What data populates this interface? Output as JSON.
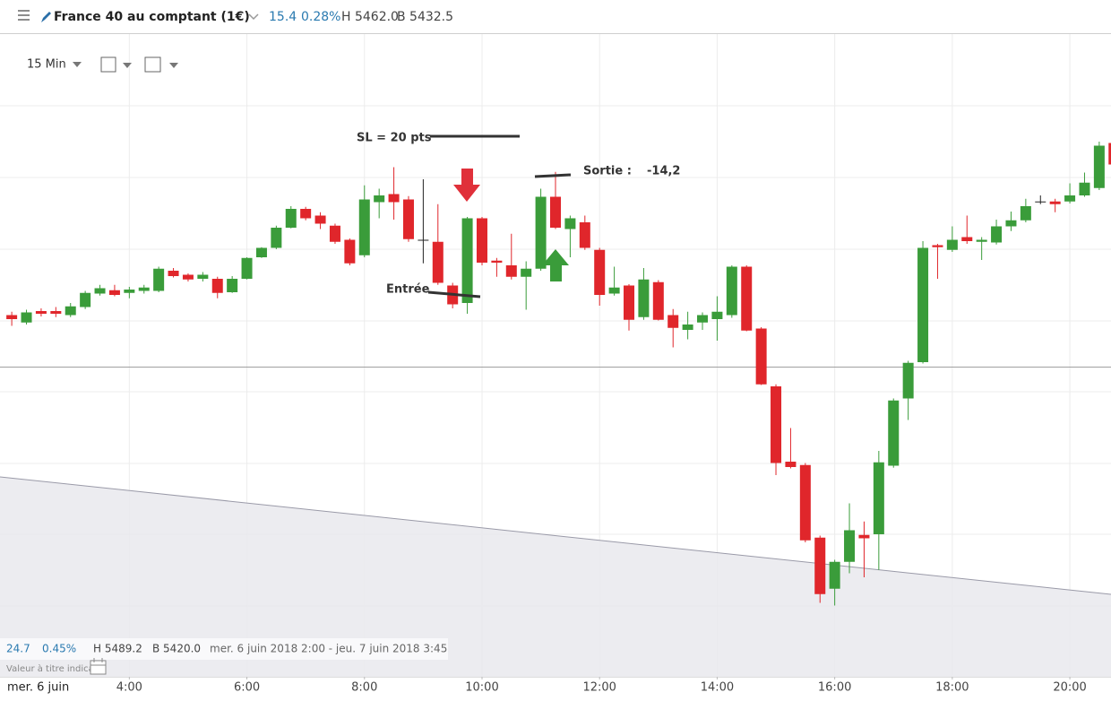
{
  "header": {
    "title": "France 40 au comptant (1€)",
    "change": "15.4",
    "change_pct": "0.28%",
    "high": "H 5462.0",
    "low": "B 5432.5"
  },
  "toolbar": {
    "interval": "15 Min"
  },
  "info_bar": {
    "change": "24.7",
    "change_pct": "0.45%",
    "high": "H 5489.2",
    "low": "B 5420.0",
    "range": "mer. 6 juin 2018 2:00 - jeu. 7 juin 2018 3:45",
    "disclaimer": "Valeur à titre indicat"
  },
  "chart_data": {
    "type": "candlestick",
    "date_label": "mer. 6 juin",
    "annotations": {
      "stop_loss": "SL = 20 pts",
      "exit": "Sortie :",
      "exit_result": "-14,2",
      "entry": "Entrée"
    },
    "up_color": "#3a9c3a",
    "down_color": "#e0262b",
    "flat_color": "#222222",
    "xlim": [
      1.8,
      20.7
    ],
    "ylim": [
      5409.6,
      5505.2
    ],
    "grid": true,
    "xticks": [
      {
        "value": 4,
        "label": "4:00"
      },
      {
        "value": 6,
        "label": "6:00"
      },
      {
        "value": 8,
        "label": "8:00"
      },
      {
        "value": 10,
        "label": "10:00"
      },
      {
        "value": 12,
        "label": "12:00"
      },
      {
        "value": 14,
        "label": "14:00"
      },
      {
        "value": 16,
        "label": "16:00"
      },
      {
        "value": 18,
        "label": "18:00"
      },
      {
        "value": 20,
        "label": "20:00"
      }
    ],
    "x": [
      2,
      2.25,
      2.5,
      2.75,
      3,
      3.25,
      3.5,
      3.75,
      4,
      4.25,
      4.5,
      4.75,
      5,
      5.25,
      5.5,
      5.75,
      6,
      6.25,
      6.5,
      6.75,
      7,
      7.25,
      7.5,
      7.75,
      8,
      8.25,
      8.5,
      8.75,
      9,
      9.25,
      9.5,
      9.75,
      10,
      10.25,
      10.5,
      10.75,
      11,
      11.25,
      11.5,
      11.75,
      12,
      12.25,
      12.5,
      12.75,
      13,
      13.25,
      13.5,
      13.75,
      14,
      14.25,
      14.5,
      14.75,
      15,
      15.25,
      15.5,
      15.75,
      16,
      16.25,
      16.5,
      16.75,
      17,
      17.25,
      17.5,
      17.75,
      18,
      18.25,
      18.5,
      18.75,
      19,
      19.25,
      19.5,
      19.75,
      20,
      20.25,
      20.5,
      20.75
    ],
    "open": [
      5463.4,
      5462.3,
      5464.0,
      5464.0,
      5463.4,
      5464.6,
      5466.6,
      5467.1,
      5466.7,
      5467.0,
      5467.0,
      5470.0,
      5469.4,
      5468.8,
      5468.8,
      5466.8,
      5468.8,
      5472.0,
      5473.4,
      5476.4,
      5479.2,
      5478.2,
      5476.7,
      5474.6,
      5472.3,
      5480.2,
      5481.4,
      5480.6,
      5474.6,
      5474.3,
      5467.8,
      5465.2,
      5477.8,
      5471.5,
      5470.8,
      5469.1,
      5470.3,
      5481.0,
      5476.2,
      5477.2,
      5473.1,
      5466.6,
      5467.8,
      5463.1,
      5468.3,
      5463.4,
      5461.2,
      5462.3,
      5462.8,
      5463.4,
      5470.6,
      5461.4,
      5452.8,
      5441.6,
      5441.1,
      5430.3,
      5422.7,
      5426.7,
      5430.7,
      5430.8,
      5441.0,
      5451.0,
      5456.4,
      5473.8,
      5473.1,
      5475.0,
      5474.3,
      5474.2,
      5476.6,
      5477.5,
      5480.3,
      5480.3,
      5480.3,
      5481.2,
      5482.3,
      5489.0
    ],
    "high": [
      5463.9,
      5464.2,
      5464.4,
      5464.6,
      5465.2,
      5467.0,
      5467.9,
      5467.9,
      5467.6,
      5467.9,
      5470.6,
      5470.4,
      5469.6,
      5469.8,
      5469.1,
      5469.2,
      5472.0,
      5473.5,
      5476.7,
      5479.6,
      5479.5,
      5478.7,
      5477.0,
      5474.8,
      5482.7,
      5482.2,
      5485.4,
      5481.1,
      5483.6,
      5479.9,
      5468.2,
      5478.0,
      5478.0,
      5471.9,
      5475.5,
      5471.4,
      5482.2,
      5484.7,
      5478.2,
      5478.2,
      5473.4,
      5470.6,
      5468.0,
      5470.4,
      5468.6,
      5464.3,
      5463.9,
      5463.8,
      5466.2,
      5470.8,
      5470.8,
      5461.6,
      5453.1,
      5446.6,
      5441.4,
      5430.6,
      5427.0,
      5435.4,
      5432.7,
      5443.2,
      5451.0,
      5456.6,
      5474.4,
      5474.0,
      5476.6,
      5478.2,
      5475.0,
      5477.6,
      5478.8,
      5480.7,
      5481.2,
      5480.7,
      5483.0,
      5484.6,
      5489.2,
      5489.2
    ],
    "low": [
      5461.8,
      5462.0,
      5463.2,
      5463.1,
      5463.1,
      5464.3,
      5466.3,
      5466.2,
      5465.9,
      5466.6,
      5466.8,
      5469.0,
      5468.4,
      5468.4,
      5465.9,
      5466.7,
      5468.7,
      5471.9,
      5473.2,
      5476.3,
      5477.5,
      5476.2,
      5474.0,
      5470.8,
      5472.0,
      5477.8,
      5477.6,
      5474.3,
      5471.1,
      5467.9,
      5464.4,
      5463.6,
      5470.8,
      5469.1,
      5468.7,
      5464.2,
      5470.0,
      5476.2,
      5472.0,
      5473.1,
      5464.8,
      5466.3,
      5461.1,
      5462.7,
      5462.6,
      5458.6,
      5459.8,
      5461.2,
      5459.6,
      5463.0,
      5461.0,
      5453.0,
      5439.6,
      5440.6,
      5429.6,
      5420.6,
      5420.2,
      5425.0,
      5424.4,
      5425.5,
      5440.7,
      5447.8,
      5456.2,
      5468.8,
      5472.8,
      5474.0,
      5471.6,
      5473.9,
      5475.9,
      5477.2,
      5479.9,
      5478.7,
      5480.0,
      5481.0,
      5482.0,
      5485.5
    ],
    "close": [
      5462.8,
      5463.8,
      5463.6,
      5463.6,
      5464.7,
      5466.7,
      5467.4,
      5466.4,
      5467.2,
      5467.5,
      5470.3,
      5469.2,
      5468.7,
      5469.4,
      5466.7,
      5468.8,
      5471.9,
      5473.4,
      5476.4,
      5479.2,
      5477.8,
      5477.0,
      5474.3,
      5471.1,
      5480.6,
      5481.2,
      5480.2,
      5474.7,
      5474.6,
      5468.2,
      5465.0,
      5477.8,
      5471.2,
      5471.2,
      5469.1,
      5470.3,
      5481.0,
      5476.4,
      5477.8,
      5473.4,
      5466.4,
      5467.5,
      5462.7,
      5468.7,
      5462.7,
      5461.5,
      5462.0,
      5463.4,
      5463.9,
      5470.6,
      5461.1,
      5453.1,
      5441.4,
      5440.8,
      5429.9,
      5421.9,
      5426.7,
      5431.4,
      5430.2,
      5441.5,
      5450.7,
      5456.3,
      5473.4,
      5473.5,
      5474.6,
      5474.4,
      5474.6,
      5476.6,
      5477.5,
      5479.6,
      5480.3,
      5479.9,
      5481.2,
      5483.1,
      5488.6,
      5485.8
    ]
  }
}
